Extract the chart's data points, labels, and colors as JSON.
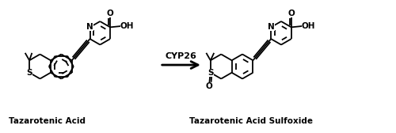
{
  "background_color": "#ffffff",
  "label_left": "Tazarotenic Acid",
  "label_right": "Tazarotenic Acid Sulfoxide",
  "arrow_label": "CYP26",
  "figsize": [
    5.0,
    1.68
  ],
  "dpi": 100,
  "line_color": "#000000",
  "line_width": 1.3,
  "font_size_labels": 7.5,
  "font_size_atom": 7.5,
  "font_size_arrow": 8.0
}
